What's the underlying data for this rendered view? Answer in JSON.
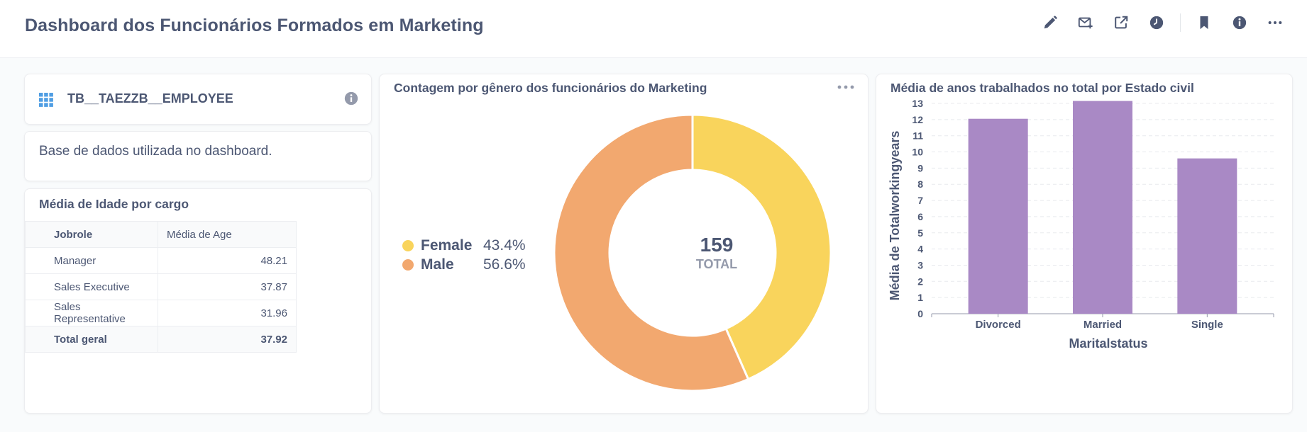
{
  "header": {
    "title": "Dashboard dos Funcionários Formados em Marketing",
    "icons": [
      "pencil-icon",
      "subscription-icon",
      "share-icon",
      "history-icon",
      "bookmark-icon",
      "info-icon",
      "more-icon"
    ]
  },
  "table_card": {
    "name": "TB__TAEZZB__EMPLOYEE",
    "icon": "grid-icon"
  },
  "text_card": {
    "text": "Base de dados utilizada no dashboard."
  },
  "age_table": {
    "title": "Média de Idade por cargo",
    "columns": [
      "Jobrole",
      "Média de Age"
    ],
    "rows": [
      {
        "label": "Manager",
        "value": "48.21"
      },
      {
        "label": "Sales Executive",
        "value": "37.87"
      },
      {
        "label": "Sales Representative",
        "value": "31.96"
      }
    ],
    "total": {
      "label": "Total geral",
      "value": "37.92"
    }
  },
  "chart_data": [
    {
      "type": "pie",
      "title": "Contagem por gênero dos funcionários do Marketing",
      "center_value": "159",
      "center_label": "TOTAL",
      "slices": [
        {
          "name": "Female",
          "percent": 43.4,
          "label": "43.4%",
          "color": "#f9d45c"
        },
        {
          "name": "Male",
          "percent": 56.6,
          "label": "56.6%",
          "color": "#f2a86f"
        }
      ],
      "legend": "left"
    },
    {
      "type": "bar",
      "title": "Média de anos trabalhados no total por Estado civil",
      "categories": [
        "Divorced",
        "Married",
        "Single"
      ],
      "values": [
        12.05,
        13.15,
        9.6
      ],
      "xlabel": "Maritalstatus",
      "ylabel": "Média de Totalworkingyears",
      "ylim": [
        0,
        13
      ],
      "yticks": [
        0,
        1,
        2,
        3,
        4,
        5,
        6,
        7,
        8,
        9,
        10,
        11,
        12,
        13
      ],
      "color": "#a989c5",
      "grid": true
    }
  ]
}
